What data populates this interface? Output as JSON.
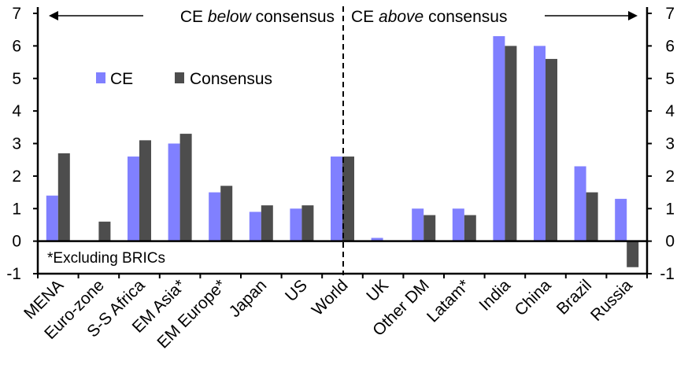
{
  "chart_data": {
    "type": "bar",
    "categories": [
      "MENA",
      "Euro-zone",
      "S-S Africa",
      "EM Asia*",
      "EM Europe*",
      "Japan",
      "US",
      "World",
      "UK",
      "Other DM",
      "Latam*",
      "India",
      "China",
      "Brazil",
      "Russia"
    ],
    "series": [
      {
        "name": "CE",
        "color": "#8080ff",
        "values": [
          1.4,
          null,
          2.6,
          3.0,
          1.5,
          0.9,
          1.0,
          2.6,
          0.1,
          1.0,
          1.0,
          6.3,
          6.0,
          2.3,
          1.3
        ]
      },
      {
        "name": "Consensus",
        "color": "#4d4d4d",
        "values": [
          2.7,
          0.6,
          3.1,
          3.3,
          1.7,
          1.1,
          1.1,
          2.6,
          0.0,
          0.8,
          0.8,
          6.0,
          5.6,
          1.5,
          -0.8
        ]
      }
    ],
    "ylim": [
      -1,
      7
    ],
    "yticks": [
      -1,
      0,
      1,
      2,
      3,
      4,
      5,
      6,
      7
    ],
    "legend_position": "top-left",
    "annotations": {
      "left_label_pre": "CE ",
      "left_label_em": "below",
      "left_label_post": " consensus",
      "right_label_pre": "CE ",
      "right_label_em": "above",
      "right_label_post": " consensus",
      "footnote": "*Excluding BRICs"
    }
  }
}
